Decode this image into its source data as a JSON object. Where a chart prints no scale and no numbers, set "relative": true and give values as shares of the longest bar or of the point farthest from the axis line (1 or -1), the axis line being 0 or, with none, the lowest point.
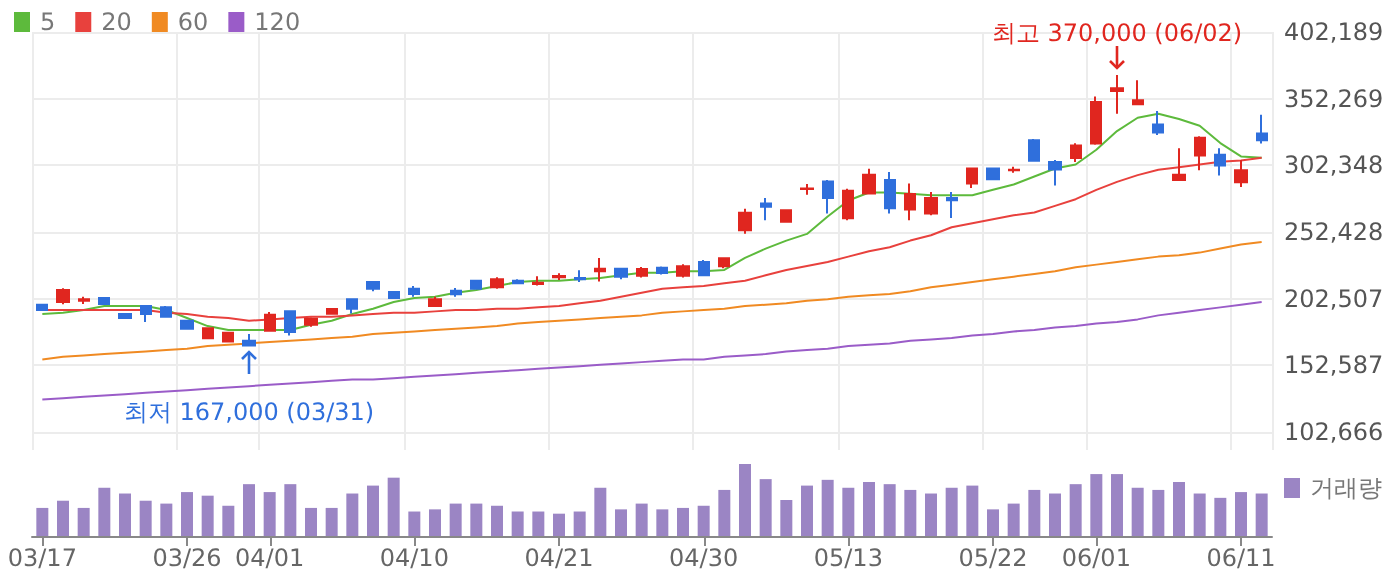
{
  "chart_data": [
    {
      "type": "candlestick",
      "categories": [
        null,
        null,
        null,
        null,
        null,
        null,
        null,
        null,
        null,
        null,
        null,
        null,
        null,
        null,
        null,
        null,
        null,
        null,
        null,
        null,
        null,
        null,
        null,
        null,
        null,
        null,
        null,
        null,
        null,
        null,
        null,
        null,
        null,
        null,
        null,
        null,
        null,
        null,
        null,
        null,
        null,
        null,
        null,
        null,
        null,
        null,
        null,
        null,
        null,
        null,
        null,
        null,
        null,
        null,
        null,
        null,
        null,
        null,
        null,
        null
      ],
      "ohlc": [
        [
          198000,
          198000,
          194000,
          194000
        ],
        [
          200000,
          210300,
          198300,
          209000
        ],
        [
          201000,
          204000,
          198500,
          202000
        ],
        [
          203000,
          203500,
          198000,
          198500
        ],
        [
          191000,
          191000,
          188000,
          188000
        ],
        [
          197000,
          197500,
          185000,
          191000
        ],
        [
          196000,
          197000,
          188500,
          189000
        ],
        [
          186000,
          186000,
          180000,
          180000
        ],
        [
          172800,
          180500,
          172500,
          180300
        ],
        [
          170500,
          177000,
          170500,
          177000
        ],
        [
          171000,
          176000,
          167000,
          167500
        ],
        [
          178500,
          192500,
          177700,
          190500
        ],
        [
          193000,
          193000,
          175000,
          177500
        ],
        [
          183000,
          188500,
          181500,
          187500
        ],
        [
          191300,
          195500,
          190500,
          194800
        ],
        [
          202000,
          202000,
          191500,
          195000
        ],
        [
          215000,
          215000,
          208000,
          210000
        ],
        [
          207500,
          208000,
          202500,
          203000
        ],
        [
          210000,
          212000,
          204000,
          206000
        ],
        [
          197000,
          204000,
          197000,
          202000
        ],
        [
          208500,
          210500,
          204000,
          205800
        ],
        [
          216000,
          216500,
          209500,
          210000
        ],
        [
          211000,
          218500,
          210000,
          217000
        ],
        [
          216000,
          217000,
          213500,
          214000
        ],
        [
          213500,
          219300,
          212300,
          214500
        ],
        [
          218500,
          221500,
          216500,
          219500
        ],
        [
          218000,
          223800,
          215000,
          217000
        ],
        [
          223000,
          233000,
          215300,
          225000
        ],
        [
          225000,
          225000,
          217000,
          219000
        ],
        [
          219700,
          226300,
          218300,
          224800
        ],
        [
          225700,
          226600,
          220700,
          221800
        ],
        [
          219700,
          228300,
          218300,
          226800
        ],
        [
          230000,
          231500,
          219500,
          220000
        ],
        [
          226800,
          233000,
          225300,
          232800
        ],
        [
          253800,
          269800,
          251200,
          266800
        ],
        [
          273700,
          277800,
          261300,
          271300
        ],
        [
          260200,
          269000,
          260000,
          268800
        ],
        [
          284600,
          288300,
          280300,
          285000
        ],
        [
          290200,
          291300,
          266300,
          277800
        ],
        [
          262800,
          284800,
          261300,
          283300
        ],
        [
          281200,
          299800,
          281000,
          295300
        ],
        [
          291300,
          297300,
          266300,
          270300
        ],
        [
          269200,
          288700,
          261300,
          280800
        ],
        [
          266200,
          282300,
          265000,
          277800
        ],
        [
          277800,
          282300,
          263000,
          276300
        ],
        [
          288700,
          300000,
          285300,
          300000
        ],
        [
          300000,
          300000,
          292000,
          292000
        ],
        [
          298700,
          301300,
          296800,
          299000
        ],
        [
          321200,
          322000,
          305000,
          305800
        ],
        [
          304800,
          306300,
          287200,
          299200
        ],
        [
          307800,
          318800,
          304800,
          317200
        ],
        [
          318700,
          353800,
          317800,
          349700
        ],
        [
          358000,
          370000,
          341000,
          360000
        ],
        [
          348000,
          366000,
          348000,
          351000
        ],
        [
          333000,
          343000,
          325000,
          327000
        ],
        [
          291300,
          315200,
          291300,
          295300
        ],
        [
          309700,
          324200,
          298700,
          323000
        ],
        [
          310300,
          315200,
          294700,
          302200
        ],
        [
          289700,
          306300,
          286200,
          298700
        ],
        [
          326200,
          340300,
          318700,
          321200
        ]
      ],
      "colors": [
        "#2f6fdc",
        "#e0261f",
        "#e0261f",
        "#2f6fdc",
        "#2f6fdc",
        "#2f6fdc",
        "#2f6fdc",
        "#2f6fdc",
        "#e0261f",
        "#e0261f",
        "#2f6fdc",
        "#e0261f",
        "#2f6fdc",
        "#e0261f",
        "#e0261f",
        "#2f6fdc",
        "#2f6fdc",
        "#2f6fdc",
        "#2f6fdc",
        "#e0261f",
        "#2f6fdc",
        "#2f6fdc",
        "#e0261f",
        "#2f6fdc",
        "#e0261f",
        "#e0261f",
        "#2f6fdc",
        "#e0261f",
        "#2f6fdc",
        "#e0261f",
        "#2f6fdc",
        "#e0261f",
        "#2f6fdc",
        "#e0261f",
        "#e0261f",
        "#2f6fdc",
        "#e0261f",
        "#e0261f",
        "#2f6fdc",
        "#e0261f",
        "#e0261f",
        "#2f6fdc",
        "#e0261f",
        "#e0261f",
        "#2f6fdc",
        "#e0261f",
        "#2f6fdc",
        "#e0261f",
        "#2f6fdc",
        "#2f6fdc",
        "#e0261f",
        "#e0261f",
        "#e0261f",
        "#e0261f",
        "#2f6fdc",
        "#e0261f",
        "#e0261f",
        "#2f6fdc",
        "#e0261f",
        "#2f6fdc"
      ],
      "series": [
        {
          "name": "5",
          "type": "line",
          "color": "#5dba3c",
          "values": [
            191000,
            192000,
            194000,
            197000,
            197000,
            197000,
            194000,
            188000,
            182000,
            179000,
            179000,
            179000,
            179000,
            183000,
            186000,
            191000,
            195000,
            200000,
            203000,
            204000,
            207000,
            209000,
            212000,
            215000,
            216000,
            216000,
            217000,
            218000,
            220000,
            222000,
            222000,
            223000,
            223000,
            224000,
            233000,
            240000,
            246000,
            251000,
            264000,
            276000,
            282000,
            282000,
            281000,
            280000,
            280000,
            280000,
            284000,
            288000,
            294000,
            300000,
            303000,
            314000,
            328000,
            338000,
            341000,
            337000,
            332000,
            319000,
            309000,
            308000
          ]
        },
        {
          "name": "20",
          "type": "line",
          "color": "#e8413d",
          "values": [
            194000,
            194000,
            194000,
            194000,
            194000,
            194000,
            192000,
            191000,
            189000,
            188000,
            186000,
            187000,
            188000,
            189000,
            189000,
            190000,
            191000,
            192000,
            192000,
            193000,
            194000,
            194000,
            195000,
            195000,
            196000,
            197000,
            199000,
            201000,
            204000,
            207000,
            210000,
            211000,
            212000,
            214000,
            216000,
            220000,
            224000,
            227000,
            230000,
            234000,
            238000,
            241000,
            246000,
            250000,
            256000,
            259000,
            262000,
            265000,
            267000,
            272000,
            277000,
            284000,
            290000,
            295000,
            299000,
            301000,
            303000,
            305000,
            306000,
            308000
          ]
        },
        {
          "name": "60",
          "type": "line",
          "color": "#f08a22",
          "values": [
            157000,
            159000,
            160000,
            161000,
            162000,
            163000,
            164000,
            165000,
            167000,
            168000,
            169000,
            170000,
            171000,
            172000,
            173000,
            174000,
            176000,
            177000,
            178000,
            179000,
            180000,
            181000,
            182000,
            184000,
            185000,
            186000,
            187000,
            188000,
            189000,
            190000,
            192000,
            193000,
            194000,
            195000,
            197000,
            198000,
            199000,
            201000,
            202000,
            204000,
            205000,
            206000,
            208000,
            211000,
            213000,
            215000,
            217000,
            219000,
            221000,
            223000,
            226000,
            228000,
            230000,
            232000,
            234000,
            235000,
            237000,
            240000,
            243000,
            245000
          ]
        },
        {
          "name": "120",
          "type": "line",
          "color": "#9a5cc8",
          "values": [
            127000,
            128000,
            129000,
            130000,
            131000,
            132000,
            133000,
            134000,
            135000,
            136000,
            137000,
            138000,
            139000,
            140000,
            141000,
            142000,
            142000,
            143000,
            144000,
            145000,
            146000,
            147000,
            148000,
            149000,
            150000,
            151000,
            152000,
            153000,
            154000,
            155000,
            156000,
            157000,
            157000,
            159000,
            160000,
            161000,
            163000,
            164000,
            165000,
            167000,
            168000,
            169000,
            171000,
            172000,
            173000,
            175000,
            176000,
            178000,
            179000,
            181000,
            182000,
            184000,
            185000,
            187000,
            190000,
            192000,
            194000,
            196000,
            198000,
            200000
          ]
        }
      ],
      "ylim": [
        89200,
        402189
      ],
      "yticks": [
        {
          "value": 102666,
          "label": "102,666"
        },
        {
          "value": 152587,
          "label": "152,587"
        },
        {
          "value": 202507,
          "label": "202,507"
        },
        {
          "value": 252428,
          "label": "252,428"
        },
        {
          "value": 302348,
          "label": "302,348"
        },
        {
          "value": 352269,
          "label": "352,269"
        },
        {
          "value": 402189,
          "label": "402,189"
        }
      ],
      "grid": true,
      "legend": "top left",
      "tick_labels": "y",
      "marker": "none",
      "annotations": [
        {
          "text": "최고 370,000 (06/02)",
          "y": 370000
        },
        {
          "text": "최저 167,000 (03/31)",
          "y": 167000
        }
      ]
    },
    {
      "type": "bar",
      "categories": [
        "03/17",
        null,
        null,
        null,
        null,
        null,
        null,
        "03/26",
        null,
        null,
        null,
        "04/01",
        null,
        null,
        null,
        null,
        null,
        null,
        "04/10",
        null,
        null,
        null,
        null,
        null,
        null,
        "04/21",
        null,
        null,
        null,
        null,
        null,
        null,
        "04/30",
        null,
        null,
        null,
        null,
        null,
        null,
        "05/13",
        null,
        null,
        null,
        null,
        null,
        null,
        "05/22",
        null,
        null,
        null,
        null,
        "06/01",
        null,
        null,
        null,
        null,
        null,
        null,
        "06/11",
        null
      ],
      "relative": true,
      "series": [
        {
          "name": "거래량",
          "color": "#9b85c4",
          "values": [
            0.39,
            0.49,
            0.39,
            0.67,
            0.59,
            0.49,
            0.45,
            0.61,
            0.56,
            0.42,
            0.72,
            0.61,
            0.72,
            0.39,
            0.39,
            0.59,
            0.7,
            0.81,
            0.34,
            0.37,
            0.45,
            0.45,
            0.42,
            0.34,
            0.34,
            0.31,
            0.34,
            0.67,
            0.37,
            0.45,
            0.37,
            0.39,
            0.42,
            0.64,
            1,
            0.79,
            0.5,
            0.7,
            0.78,
            0.67,
            0.75,
            0.72,
            0.64,
            0.59,
            0.67,
            0.7,
            0.37,
            0.45,
            0.64,
            0.59,
            0.72,
            0.86,
            0.86,
            0.67,
            0.64,
            0.75,
            0.59,
            0.53,
            0.61,
            0.59
          ]
        }
      ],
      "legend": "top right",
      "tick_labels": "x"
    }
  ]
}
